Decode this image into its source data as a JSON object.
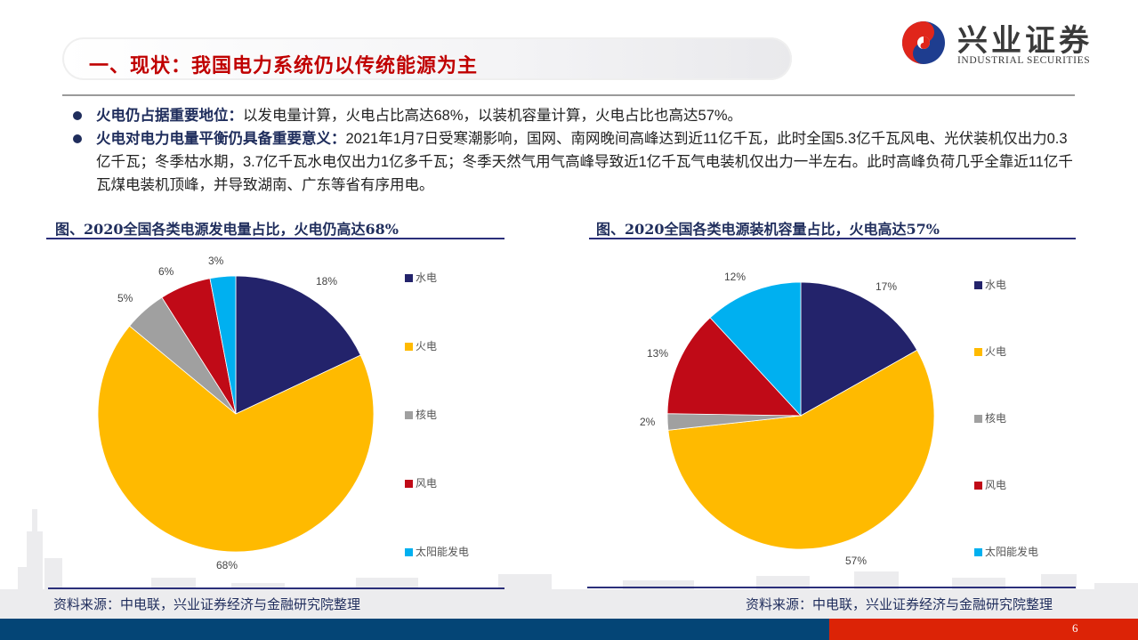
{
  "header": {
    "title": "一、现状：我国电力系统仍以传统能源为主",
    "logo_cn": "兴业证券",
    "logo_en": "INDUSTRIAL SECURITIES"
  },
  "bullets": [
    {
      "bold": "火电仍占据重要地位：",
      "text": "以发电量计算，火电占比高达68%，以装机容量计算，火电占比也高达57%。"
    },
    {
      "bold": "火电对电力电量平衡仍具备重要意义：",
      "text": "2021年1月7日受寒潮影响，国网、南网晚间高峰达到近11亿千瓦，此时全国5.3亿千瓦风电、光伏装机仅出力0.3亿千瓦；冬季枯水期，3.7亿千瓦水电仅出力1亿多千瓦；冬季天然气用气高峰导致近1亿千瓦气电装机仅出力一半左右。此时高峰负荷几乎全靠近11亿千瓦煤电装机顶峰，并导致湖南、广东等省有序用电。"
    }
  ],
  "colors": {
    "水电": "#23236b",
    "火电": "#ffba00",
    "核电": "#a0a0a0",
    "风电": "#c00a17",
    "太阳能发电": "#00b0f0",
    "title_red": "#c00000",
    "navy": "#1f2d5c",
    "footer_blue": "#044576",
    "footer_red": "#dc2306"
  },
  "chart_data": [
    {
      "type": "pie",
      "title": "图、2020全国各类电源发电量占比，火电仍高达68%",
      "categories": [
        "水电",
        "火电",
        "核电",
        "风电",
        "太阳能发电"
      ],
      "values": [
        18,
        68,
        5,
        6,
        3
      ],
      "labels": [
        "18%",
        "68%",
        "5%",
        "6%",
        "3%"
      ],
      "legend_position": "right",
      "source": "资料来源：中电联，兴业证券经济与金融研究院整理"
    },
    {
      "type": "pie",
      "title": "图、2020全国各类电源装机容量占比，火电高达57%",
      "categories": [
        "水电",
        "火电",
        "核电",
        "风电",
        "太阳能发电"
      ],
      "values": [
        17,
        57,
        2,
        13,
        12
      ],
      "labels": [
        "17%",
        "57%",
        "2%",
        "13%",
        "12%"
      ],
      "legend_position": "right",
      "source": "资料来源：中电联，兴业证券经济与金融研究院整理"
    }
  ],
  "footer": {
    "page_number": "6"
  }
}
